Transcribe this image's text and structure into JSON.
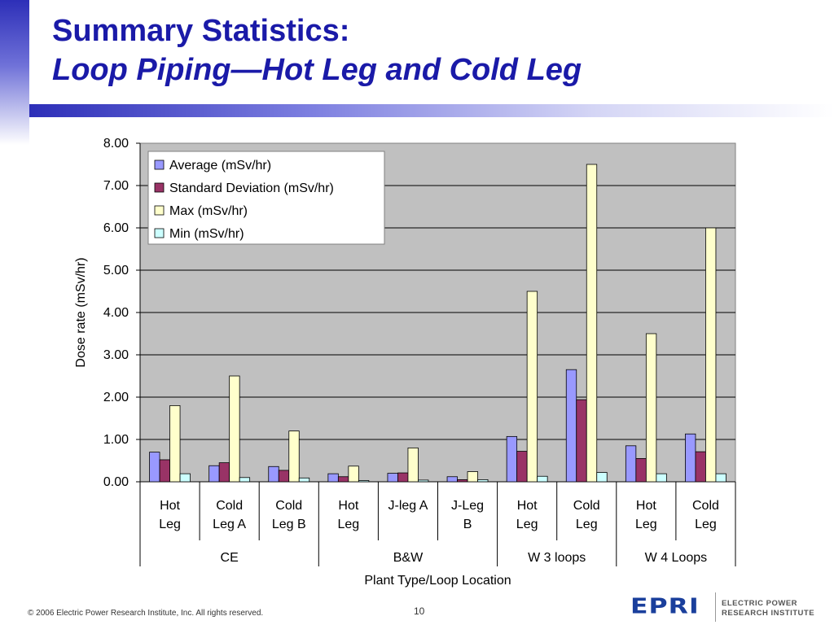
{
  "slide": {
    "title_line1": "Summary Statistics:",
    "title_line2": "Loop Piping—Hot Leg and Cold Leg",
    "footer": "© 2006 Electric Power Research Institute, Inc. All rights reserved.",
    "page_number": "10",
    "logo_mark": "EPRI",
    "logo_line1": "ELECTRIC POWER",
    "logo_line2": "RESEARCH INSTITUTE"
  },
  "chart_data": {
    "type": "bar",
    "ylabel": "Dose rate (mSv/hr)",
    "xlabel": "Plant Type/Loop Location",
    "ylim": [
      0,
      8
    ],
    "yticks": [
      "0.00",
      "1.00",
      "2.00",
      "3.00",
      "4.00",
      "5.00",
      "6.00",
      "7.00",
      "8.00"
    ],
    "grid": true,
    "legend_position": "top-left",
    "categories": [
      {
        "lines": [
          "Hot",
          "Leg"
        ]
      },
      {
        "lines": [
          "Cold",
          "Leg A"
        ]
      },
      {
        "lines": [
          "Cold",
          "Leg B"
        ]
      },
      {
        "lines": [
          "Hot",
          "Leg"
        ]
      },
      {
        "lines": [
          "J-leg A"
        ]
      },
      {
        "lines": [
          "J-Leg",
          "B"
        ]
      },
      {
        "lines": [
          "Hot",
          "Leg"
        ]
      },
      {
        "lines": [
          "Cold",
          "Leg"
        ]
      },
      {
        "lines": [
          "Hot",
          "Leg"
        ]
      },
      {
        "lines": [
          "Cold",
          "Leg"
        ]
      }
    ],
    "groups": [
      {
        "label": "CE",
        "count": 3
      },
      {
        "label": "B&W",
        "count": 3
      },
      {
        "label": "W 3 loops",
        "count": 2
      },
      {
        "label": "W 4 Loops",
        "count": 2
      }
    ],
    "series": [
      {
        "name": "Average (mSv/hr)",
        "color": "#9999ff",
        "values": [
          0.7,
          0.38,
          0.36,
          0.19,
          0.2,
          0.12,
          1.07,
          2.65,
          0.85,
          1.13
        ]
      },
      {
        "name": "Standard Deviation (mSv/hr)",
        "color": "#993366",
        "values": [
          0.52,
          0.45,
          0.27,
          0.12,
          0.21,
          0.05,
          0.72,
          1.94,
          0.55,
          0.71
        ]
      },
      {
        "name": "Max (mSv/hr)",
        "color": "#ffffcc",
        "values": [
          1.8,
          2.5,
          1.2,
          0.37,
          0.8,
          0.24,
          4.5,
          7.5,
          3.5,
          6.0
        ]
      },
      {
        "name": "Min (mSv/hr)",
        "color": "#ccffff",
        "values": [
          0.19,
          0.1,
          0.09,
          0.03,
          0.04,
          0.05,
          0.13,
          0.22,
          0.19,
          0.19
        ]
      }
    ]
  }
}
